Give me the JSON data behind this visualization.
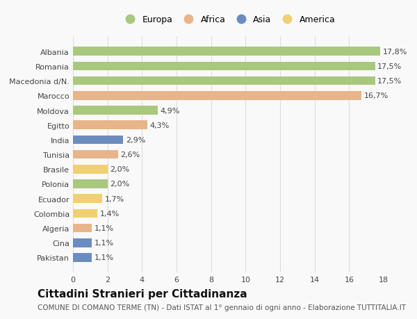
{
  "categories": [
    "Albania",
    "Romania",
    "Macedonia d/N.",
    "Marocco",
    "Moldova",
    "Egitto",
    "India",
    "Tunisia",
    "Brasile",
    "Polonia",
    "Ecuador",
    "Colombia",
    "Algeria",
    "Cina",
    "Pakistan"
  ],
  "values": [
    17.8,
    17.5,
    17.5,
    16.7,
    4.9,
    4.3,
    2.9,
    2.6,
    2.0,
    2.0,
    1.7,
    1.4,
    1.1,
    1.1,
    1.1
  ],
  "labels": [
    "17,8%",
    "17,5%",
    "17,5%",
    "16,7%",
    "4,9%",
    "4,3%",
    "2,9%",
    "2,6%",
    "2,0%",
    "2,0%",
    "1,7%",
    "1,4%",
    "1,1%",
    "1,1%",
    "1,1%"
  ],
  "continents": [
    "Europa",
    "Europa",
    "Europa",
    "Africa",
    "Europa",
    "Africa",
    "Asia",
    "Africa",
    "America",
    "Europa",
    "America",
    "America",
    "Africa",
    "Asia",
    "Asia"
  ],
  "continent_colors": {
    "Europa": "#a8c87e",
    "Africa": "#e8b48a",
    "Asia": "#6b8cbf",
    "America": "#f0d070"
  },
  "legend_order": [
    "Europa",
    "Africa",
    "Asia",
    "America"
  ],
  "title": "Cittadini Stranieri per Cittadinanza",
  "subtitle": "COMUNE DI COMANO TERME (TN) - Dati ISTAT al 1° gennaio di ogni anno - Elaborazione TUTTITALIA.IT",
  "xlim": [
    0,
    18
  ],
  "xticks": [
    0,
    2,
    4,
    6,
    8,
    10,
    12,
    14,
    16,
    18
  ],
  "background_color": "#f9f9f9",
  "grid_color": "#dddddd",
  "title_fontsize": 11,
  "subtitle_fontsize": 7.5,
  "label_fontsize": 8,
  "tick_fontsize": 8,
  "legend_fontsize": 9
}
